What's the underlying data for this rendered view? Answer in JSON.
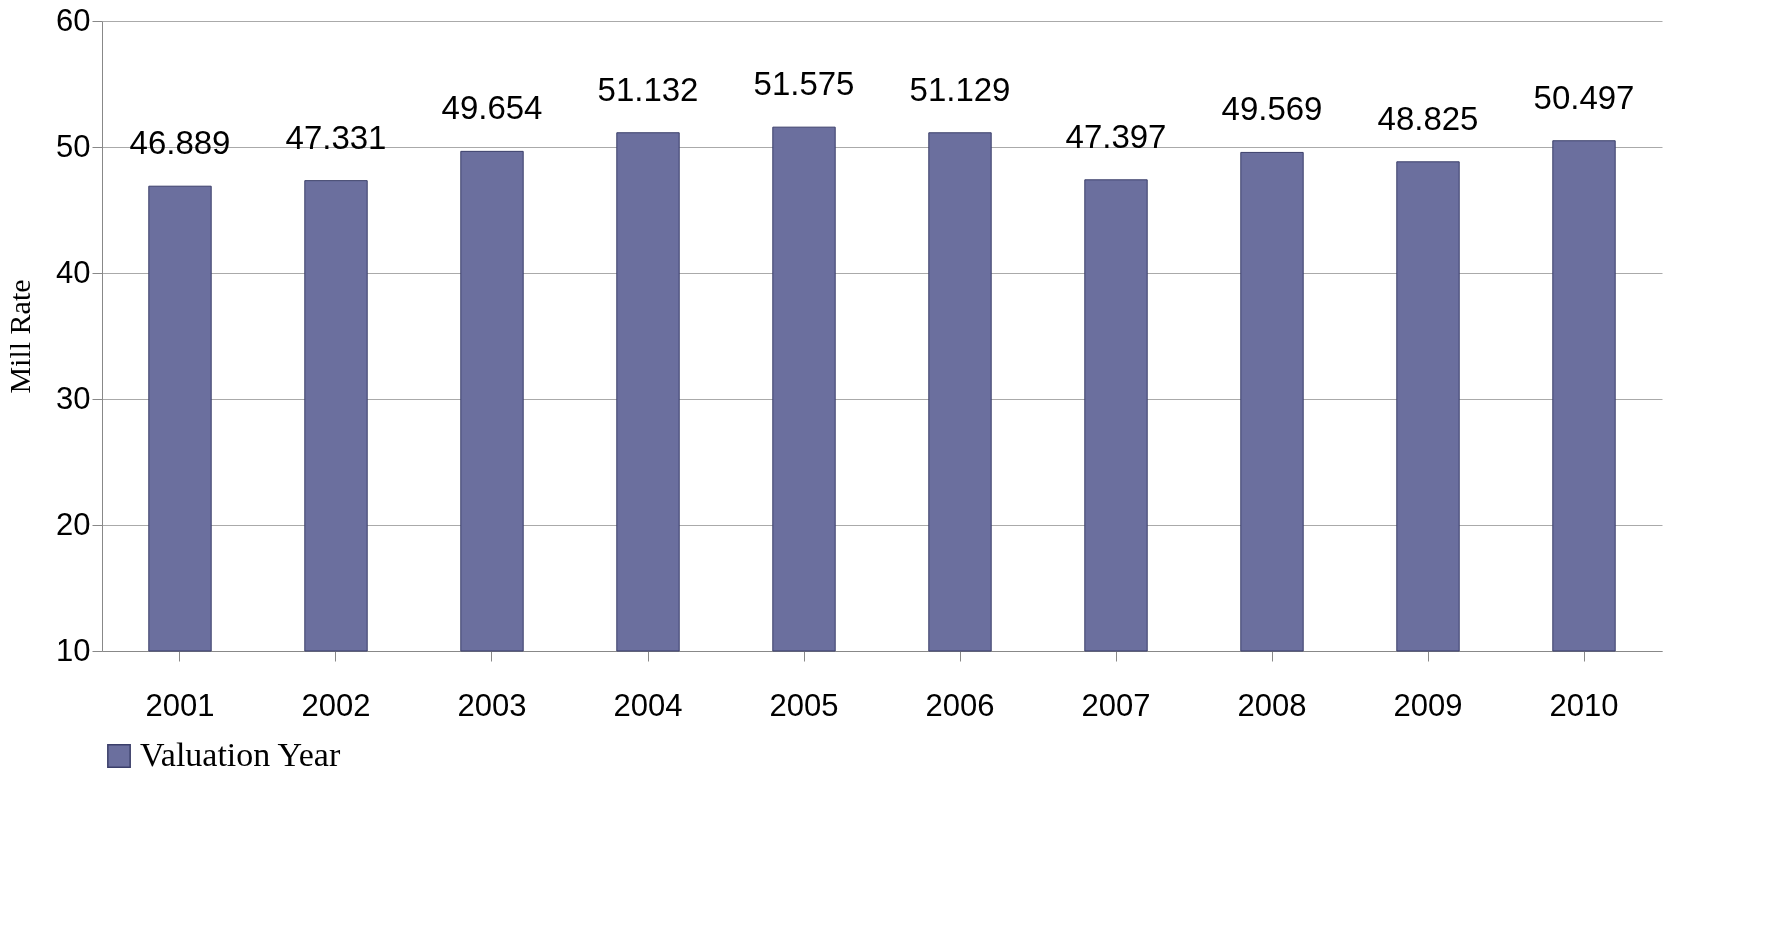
{
  "chart_data": {
    "type": "bar",
    "ylabel": "Mill Rate",
    "categories": [
      "2001",
      "2002",
      "2003",
      "2004",
      "2005",
      "2006",
      "2007",
      "2008",
      "2009",
      "2010"
    ],
    "series": [
      {
        "name": "Valuation Year",
        "color": "#6b6f9e",
        "values": [
          46.889,
          47.331,
          49.654,
          51.132,
          51.575,
          51.129,
          47.397,
          49.569,
          48.825,
          50.497
        ]
      }
    ],
    "ylim": [
      10,
      60
    ],
    "yticks": [
      10,
      20,
      30,
      40,
      50,
      60
    ],
    "grid": "y",
    "legend": "bottom",
    "data_labels": true
  }
}
